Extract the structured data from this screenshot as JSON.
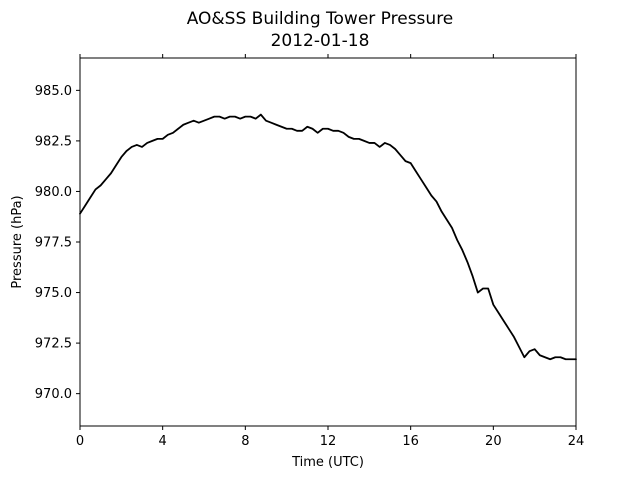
{
  "chart_data": {
    "type": "line",
    "title": "AO&SS Building Tower Pressure",
    "subtitle": "2012-01-18",
    "xlabel": "Time (UTC)",
    "ylabel": "Pressure (hPa)",
    "xlim": [
      0,
      24
    ],
    "ylim": [
      968.4,
      986.6
    ],
    "xticks": [
      0,
      4,
      8,
      12,
      16,
      20,
      24
    ],
    "xtick_labels": [
      "0",
      "4",
      "8",
      "12",
      "16",
      "20",
      "24"
    ],
    "yticks": [
      970.0,
      972.5,
      975.0,
      977.5,
      980.0,
      982.5,
      985.0
    ],
    "ytick_labels": [
      "970.0",
      "972.5",
      "975.0",
      "977.5",
      "980.0",
      "982.5",
      "985.0"
    ],
    "grid": false,
    "line_color": "#000000",
    "series": [
      {
        "x": [
          0,
          0.25,
          0.5,
          0.75,
          1.0,
          1.25,
          1.5,
          1.75,
          2.0,
          2.25,
          2.5,
          2.75,
          3.0,
          3.25,
          3.5,
          3.75,
          4.0,
          4.25,
          4.5,
          4.75,
          5.0,
          5.25,
          5.5,
          5.75,
          6.0,
          6.25,
          6.5,
          6.75,
          7.0,
          7.25,
          7.5,
          7.75,
          8.0,
          8.25,
          8.5,
          8.75,
          9.0,
          9.25,
          9.5,
          9.75,
          10.0,
          10.25,
          10.5,
          10.75,
          11.0,
          11.25,
          11.5,
          11.75,
          12.0,
          12.25,
          12.5,
          12.75,
          13.0,
          13.25,
          13.5,
          13.75,
          14.0,
          14.25,
          14.5,
          14.75,
          15.0,
          15.25,
          15.5,
          15.75,
          16.0,
          16.25,
          16.5,
          16.75,
          17.0,
          17.25,
          17.5,
          17.75,
          18.0,
          18.25,
          18.5,
          18.75,
          19.0,
          19.25,
          19.5,
          19.75,
          20.0,
          20.25,
          20.5,
          20.75,
          21.0,
          21.25,
          21.5,
          21.75,
          22.0,
          22.25,
          22.5,
          22.75,
          23.0,
          23.25,
          23.5,
          23.75,
          24.0
        ],
        "y": [
          978.9,
          979.3,
          979.7,
          980.1,
          980.3,
          980.6,
          980.9,
          981.3,
          981.7,
          982.0,
          982.2,
          982.3,
          982.2,
          982.4,
          982.5,
          982.6,
          982.6,
          982.8,
          982.9,
          983.1,
          983.3,
          983.4,
          983.5,
          983.4,
          983.5,
          983.6,
          983.7,
          983.7,
          983.6,
          983.7,
          983.7,
          983.6,
          983.7,
          983.7,
          983.6,
          983.8,
          983.5,
          983.4,
          983.3,
          983.2,
          983.1,
          983.1,
          983.0,
          983.0,
          983.2,
          983.1,
          982.9,
          983.1,
          983.1,
          983.0,
          983.0,
          982.9,
          982.7,
          982.6,
          982.6,
          982.5,
          982.4,
          982.4,
          982.2,
          982.4,
          982.3,
          982.1,
          981.8,
          981.5,
          981.4,
          981.0,
          980.6,
          980.2,
          979.8,
          979.5,
          979.0,
          978.6,
          978.2,
          977.6,
          977.1,
          976.5,
          975.8,
          975.0,
          975.2,
          975.2,
          974.4,
          974.0,
          973.6,
          973.2,
          972.8,
          972.3,
          971.8,
          972.1,
          972.2,
          971.9,
          971.8,
          971.7,
          971.8,
          971.8,
          971.7,
          971.7,
          971.7
        ]
      }
    ]
  }
}
